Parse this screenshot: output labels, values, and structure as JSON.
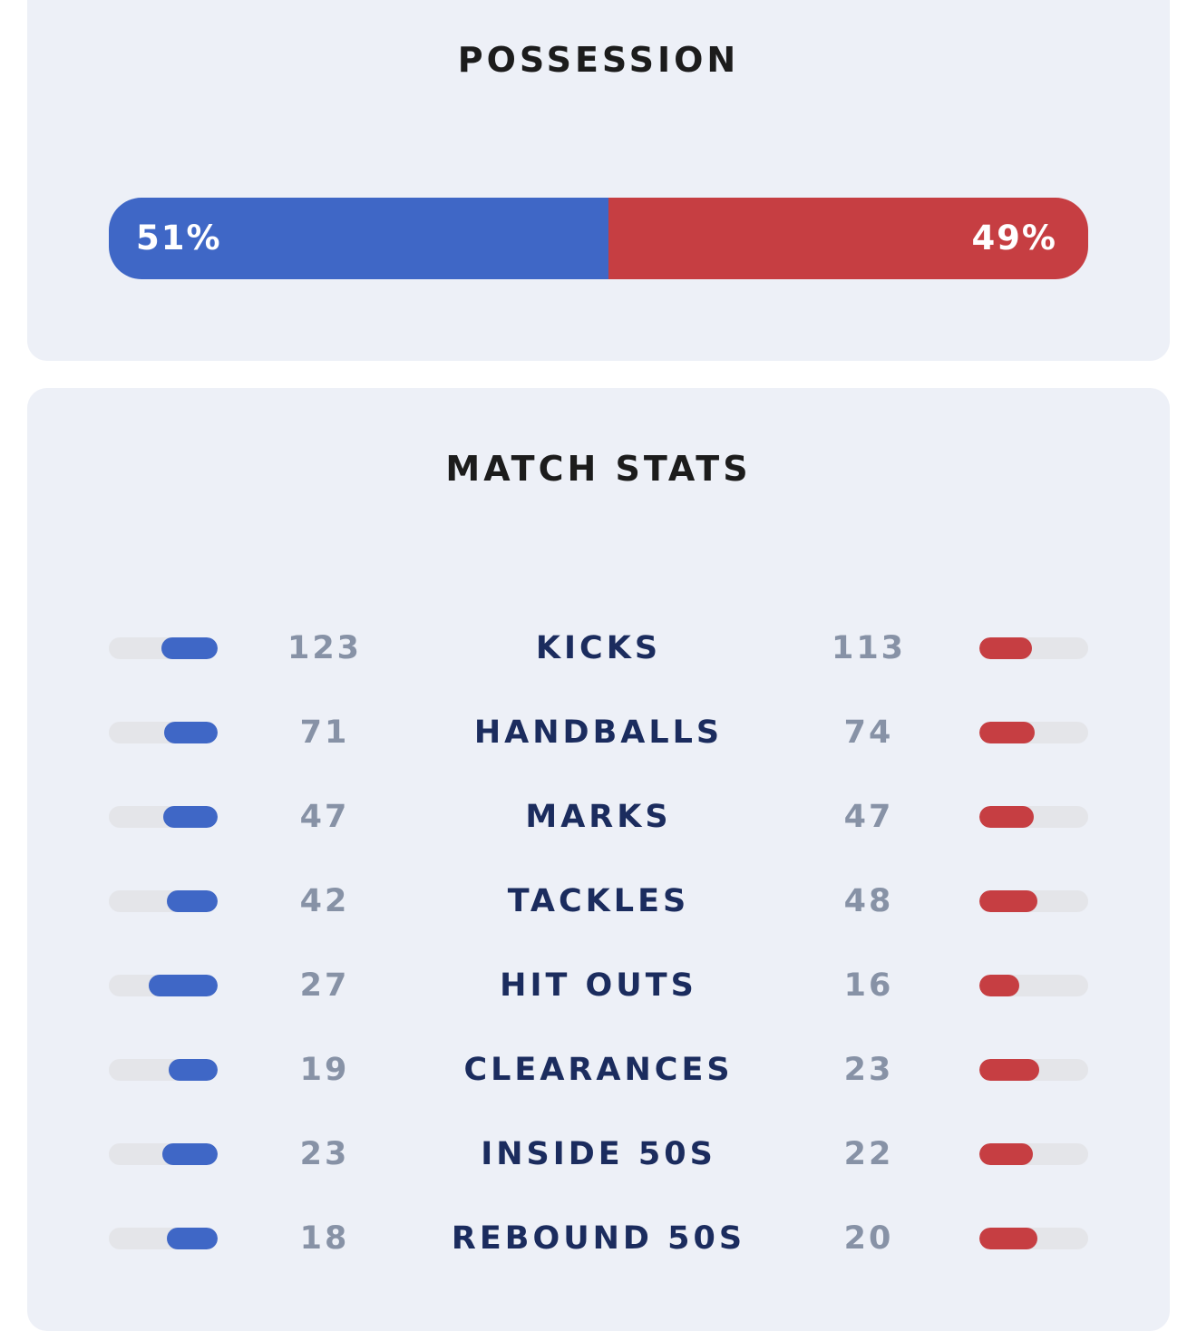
{
  "possession": {
    "title": "POSSESSION",
    "home_label": "51%",
    "away_label": "49%",
    "home_fraction": 0.51,
    "away_fraction": 0.49,
    "home_color": "#3f67c6",
    "away_color": "#c63e42"
  },
  "match_stats": {
    "title": "MATCH STATS",
    "rows": [
      {
        "label": "KICKS",
        "home": "123",
        "away": "113",
        "home_fraction": 0.52,
        "away_fraction": 0.48
      },
      {
        "label": "HANDBALLS",
        "home": "71",
        "away": "74",
        "home_fraction": 0.49,
        "away_fraction": 0.51
      },
      {
        "label": "MARKS",
        "home": "47",
        "away": "47",
        "home_fraction": 0.5,
        "away_fraction": 0.5
      },
      {
        "label": "TACKLES",
        "home": "42",
        "away": "48",
        "home_fraction": 0.47,
        "away_fraction": 0.53
      },
      {
        "label": "HIT OUTS",
        "home": "27",
        "away": "16",
        "home_fraction": 0.63,
        "away_fraction": 0.37
      },
      {
        "label": "CLEARANCES",
        "home": "19",
        "away": "23",
        "home_fraction": 0.45,
        "away_fraction": 0.55
      },
      {
        "label": "INSIDE 50S",
        "home": "23",
        "away": "22",
        "home_fraction": 0.51,
        "away_fraction": 0.49
      },
      {
        "label": "REBOUND 50S",
        "home": "18",
        "away": "20",
        "home_fraction": 0.47,
        "away_fraction": 0.53
      }
    ]
  }
}
